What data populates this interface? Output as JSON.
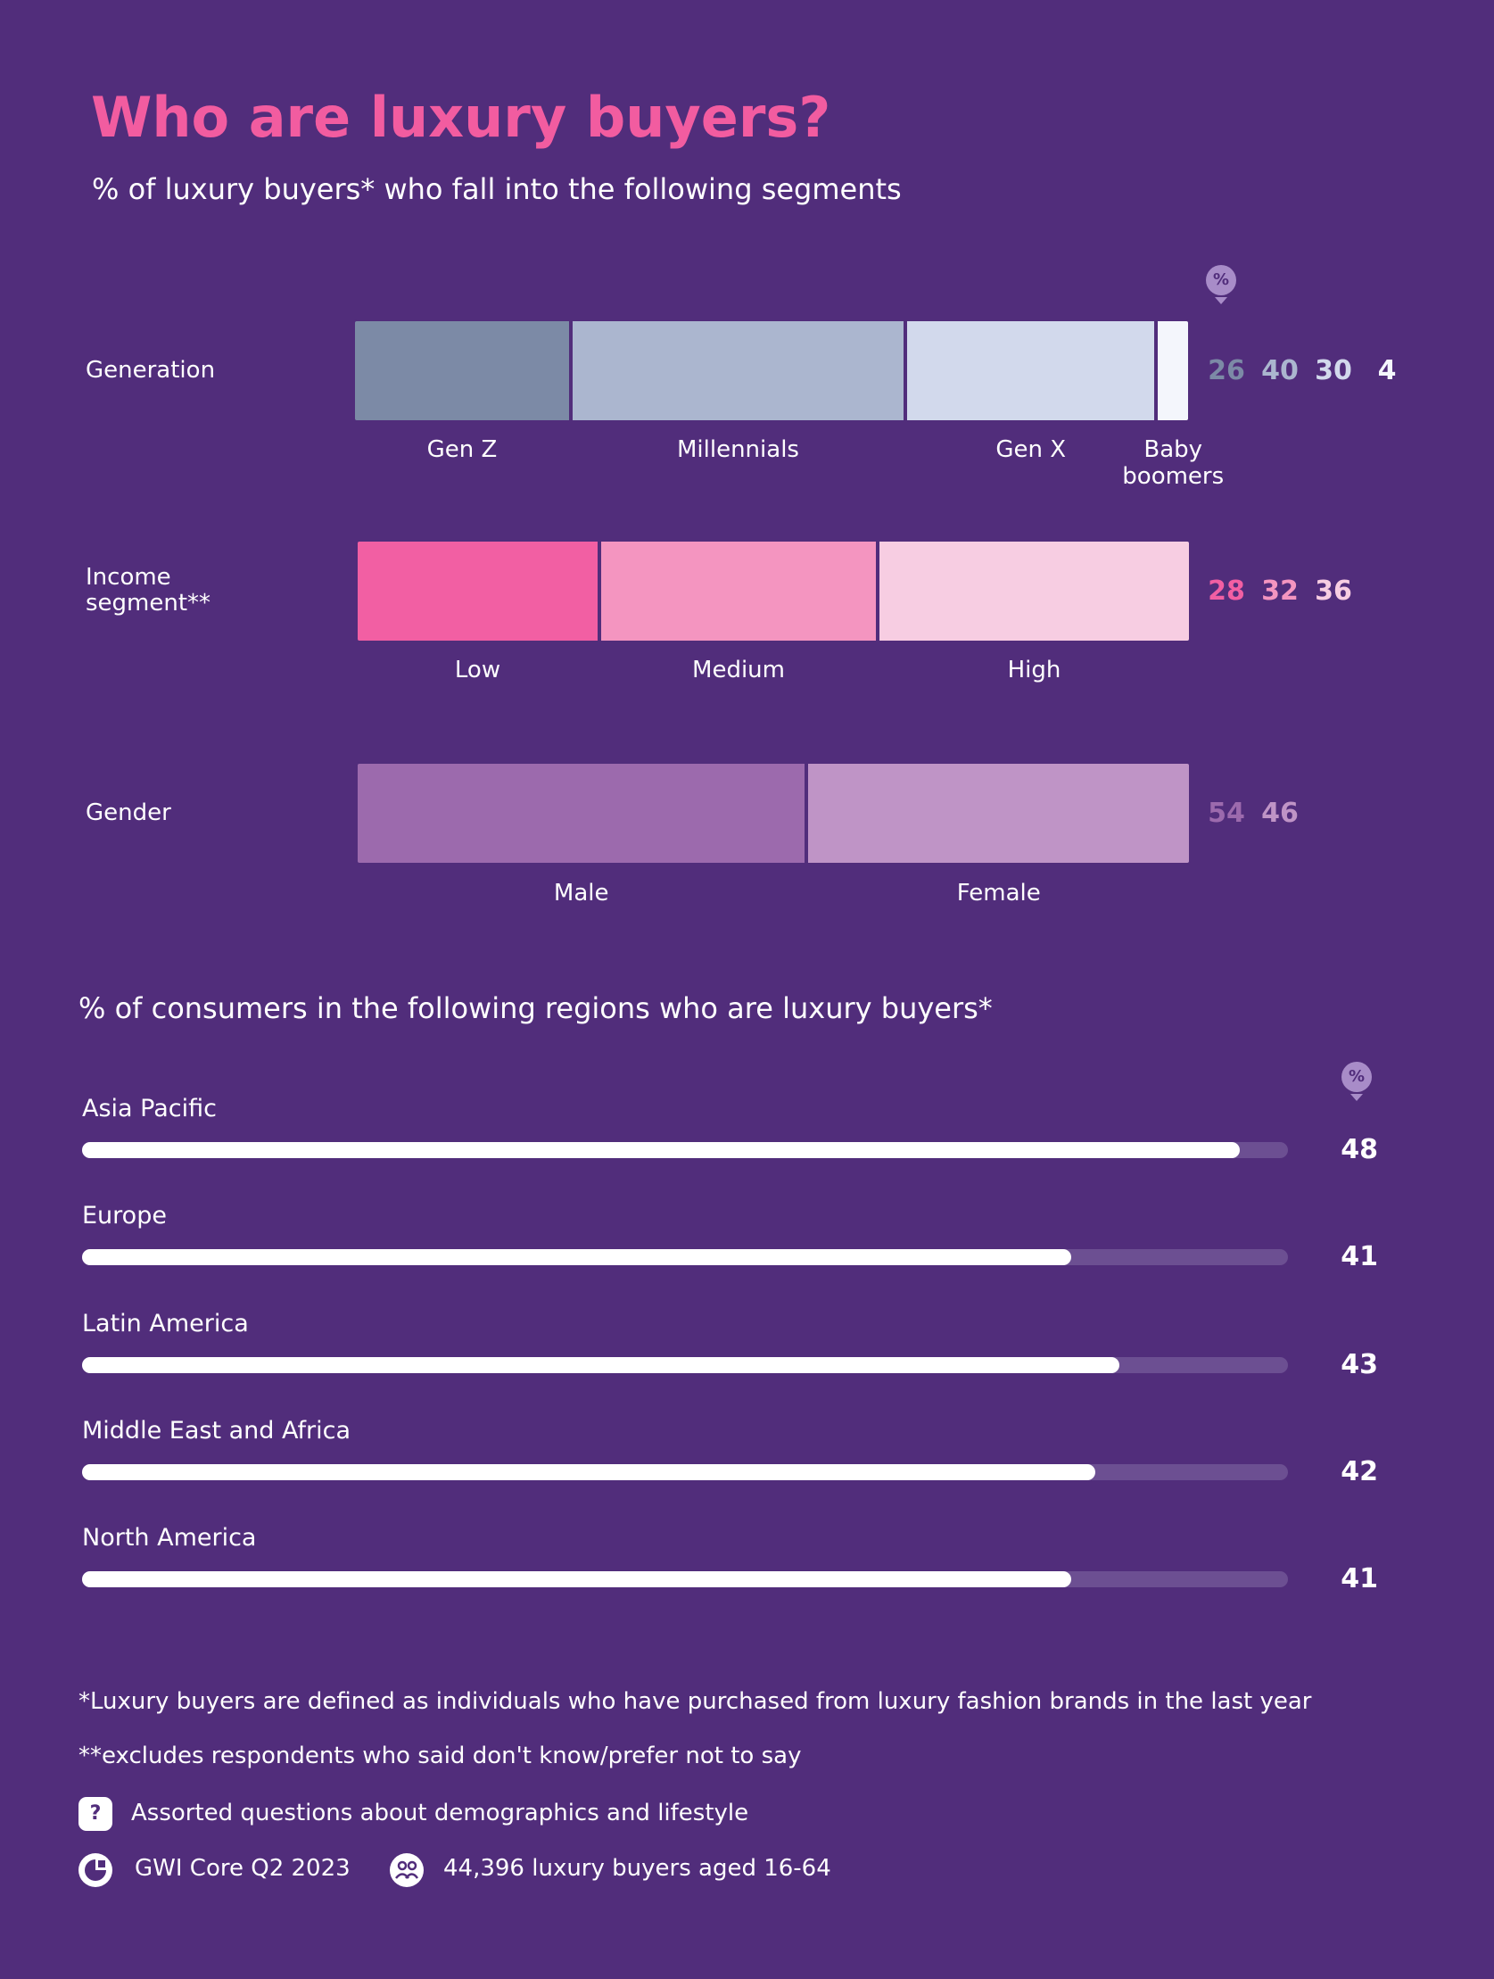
{
  "chart_data": [
    {
      "type": "stacked_bar",
      "title": "Who are luxury buyers?",
      "subtitle": "% of luxury buyers* who fall into the following segments",
      "unit_badge": "%",
      "groups": [
        {
          "name": "Generation",
          "segments": [
            {
              "name": "Gen Z",
              "value": 26,
              "color": "#7c8aa6"
            },
            {
              "name": "Millennials",
              "value": 40,
              "color": "#abb6cf"
            },
            {
              "name": "Gen X",
              "value": 30,
              "color": "#d2d9ec"
            },
            {
              "name": "Baby boomers",
              "value": 4,
              "color": "#f4f6fc"
            }
          ]
        },
        {
          "name": "Income segment**",
          "segments": [
            {
              "name": "Low",
              "value": 28,
              "color": "#f25fa3"
            },
            {
              "name": "Medium",
              "value": 32,
              "color": "#f495c0"
            },
            {
              "name": "High",
              "value": 36,
              "color": "#f7cde2"
            }
          ]
        },
        {
          "name": "Gender",
          "segments": [
            {
              "name": "Male",
              "value": 54,
              "color": "#9c6aad"
            },
            {
              "name": "Female",
              "value": 46,
              "color": "#bf94c6"
            }
          ]
        }
      ]
    },
    {
      "type": "hbar",
      "subtitle": "% of consumers in the following regions who are luxury buyers*",
      "unit_badge": "%",
      "categories": [
        "Asia Pacific",
        "Europe",
        "Latin America",
        "Middle East and Africa",
        "North America"
      ],
      "values": [
        48,
        41,
        43,
        42,
        41
      ],
      "color": "#ffffff",
      "track_color": "#6c4f92",
      "xlim": [
        0,
        50
      ]
    }
  ],
  "footer": {
    "footnotes": [
      "*Luxury buyers are defined as individuals who have purchased from luxury fashion brands in the last year",
      "**excludes respondents who said don't know/prefer not to say"
    ],
    "question_icon": "?",
    "question": "Assorted questions about demographics and lifestyle",
    "dataset": "GWI Core Q2 2023",
    "sample": "44,396 luxury buyers aged 16-64"
  }
}
